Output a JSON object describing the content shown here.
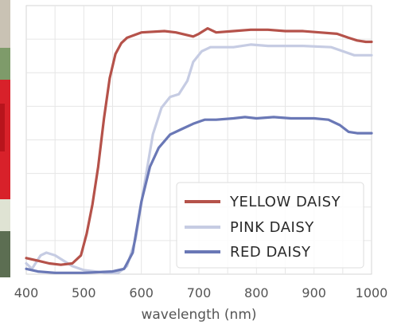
{
  "chart_data": {
    "type": "line",
    "title": "",
    "xlabel": "wavelength (nm)",
    "ylabel": "",
    "xlim": [
      400,
      1000
    ],
    "ylim": [
      0,
      1
    ],
    "x_ticks": [
      400,
      500,
      600,
      700,
      800,
      900,
      1000
    ],
    "y_tick_labels_shown": false,
    "grid": true,
    "legend_position": "lower-right",
    "background_image": "flower-photo",
    "series": [
      {
        "name": "YELLOW DAISY",
        "color": "#b5524a",
        "points": [
          [
            400,
            0.06
          ],
          [
            420,
            0.05
          ],
          [
            440,
            0.04
          ],
          [
            460,
            0.035
          ],
          [
            480,
            0.04
          ],
          [
            495,
            0.07
          ],
          [
            505,
            0.15
          ],
          [
            515,
            0.26
          ],
          [
            525,
            0.4
          ],
          [
            535,
            0.58
          ],
          [
            545,
            0.73
          ],
          [
            555,
            0.82
          ],
          [
            565,
            0.86
          ],
          [
            575,
            0.88
          ],
          [
            600,
            0.9
          ],
          [
            640,
            0.905
          ],
          [
            660,
            0.9
          ],
          [
            690,
            0.885
          ],
          [
            700,
            0.895
          ],
          [
            715,
            0.915
          ],
          [
            730,
            0.9
          ],
          [
            760,
            0.905
          ],
          [
            790,
            0.91
          ],
          [
            820,
            0.91
          ],
          [
            850,
            0.905
          ],
          [
            880,
            0.905
          ],
          [
            910,
            0.9
          ],
          [
            940,
            0.895
          ],
          [
            960,
            0.88
          ],
          [
            975,
            0.87
          ],
          [
            990,
            0.865
          ],
          [
            1000,
            0.865
          ]
        ]
      },
      {
        "name": "PINK DAISY",
        "color": "#c6cce3",
        "points": [
          [
            400,
            0.04
          ],
          [
            410,
            0.02
          ],
          [
            425,
            0.07
          ],
          [
            435,
            0.08
          ],
          [
            450,
            0.07
          ],
          [
            465,
            0.05
          ],
          [
            480,
            0.03
          ],
          [
            500,
            0.015
          ],
          [
            540,
            0.005
          ],
          [
            560,
            0.005
          ],
          [
            575,
            0.03
          ],
          [
            590,
            0.13
          ],
          [
            605,
            0.33
          ],
          [
            620,
            0.52
          ],
          [
            635,
            0.62
          ],
          [
            650,
            0.66
          ],
          [
            665,
            0.67
          ],
          [
            680,
            0.72
          ],
          [
            690,
            0.79
          ],
          [
            705,
            0.83
          ],
          [
            720,
            0.845
          ],
          [
            760,
            0.845
          ],
          [
            790,
            0.855
          ],
          [
            820,
            0.85
          ],
          [
            880,
            0.85
          ],
          [
            930,
            0.845
          ],
          [
            950,
            0.83
          ],
          [
            970,
            0.815
          ],
          [
            1000,
            0.815
          ]
        ]
      },
      {
        "name": "RED DAISY",
        "color": "#6a78b6",
        "points": [
          [
            400,
            0.02
          ],
          [
            420,
            0.01
          ],
          [
            450,
            0.005
          ],
          [
            500,
            0.005
          ],
          [
            550,
            0.01
          ],
          [
            570,
            0.02
          ],
          [
            585,
            0.08
          ],
          [
            600,
            0.27
          ],
          [
            615,
            0.4
          ],
          [
            630,
            0.47
          ],
          [
            650,
            0.52
          ],
          [
            670,
            0.54
          ],
          [
            690,
            0.56
          ],
          [
            710,
            0.575
          ],
          [
            730,
            0.575
          ],
          [
            760,
            0.58
          ],
          [
            780,
            0.585
          ],
          [
            800,
            0.58
          ],
          [
            830,
            0.585
          ],
          [
            860,
            0.58
          ],
          [
            900,
            0.58
          ],
          [
            925,
            0.575
          ],
          [
            945,
            0.555
          ],
          [
            960,
            0.53
          ],
          [
            975,
            0.525
          ],
          [
            1000,
            0.525
          ]
        ]
      }
    ]
  }
}
